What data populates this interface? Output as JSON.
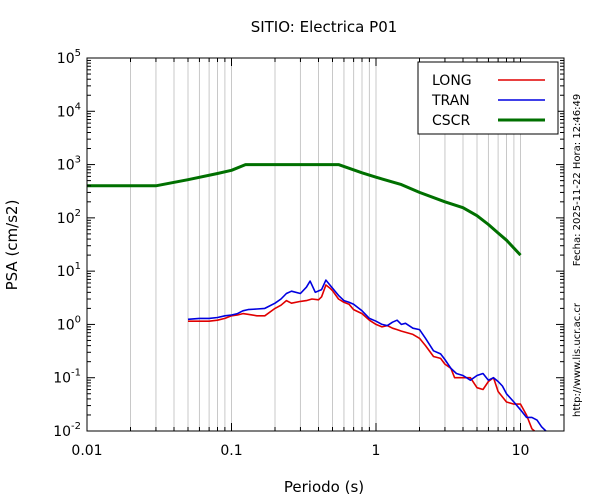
{
  "title": "SITIO: Electrica P01",
  "side_texts": {
    "date": "Fecha: 2025-11-22 Hora: 12:46:49",
    "url": "http://www.lis.ucr.ac.cr"
  },
  "chart_data": {
    "type": "line",
    "title": "SITIO: Electrica P01",
    "xlabel": "Periodo (s)",
    "ylabel": "PSA (cm/s2)",
    "xscale": "log",
    "yscale": "log",
    "xlim": [
      0.01,
      20
    ],
    "ylim": [
      0.01,
      100000
    ],
    "xticks": [
      {
        "value": 0.01,
        "label": "0.01"
      },
      {
        "value": 0.1,
        "label": "0.1"
      },
      {
        "value": 1,
        "label": "1"
      },
      {
        "value": 10,
        "label": "10"
      }
    ],
    "yticks": [
      {
        "value": 0.01,
        "base": "10",
        "exp": "-2"
      },
      {
        "value": 0.1,
        "base": "10",
        "exp": "-1"
      },
      {
        "value": 1,
        "base": "10",
        "exp": "0"
      },
      {
        "value": 10,
        "base": "10",
        "exp": "1"
      },
      {
        "value": 100,
        "base": "10",
        "exp": "2"
      },
      {
        "value": 1000,
        "base": "10",
        "exp": "3"
      },
      {
        "value": 10000,
        "base": "10",
        "exp": "4"
      },
      {
        "value": 100000,
        "base": "10",
        "exp": "5"
      }
    ],
    "grid": "x-minor-vertical",
    "legend_position": "top-right",
    "series": [
      {
        "name": "LONG",
        "color": "#e00000",
        "points": [
          [
            0.05,
            1.15
          ],
          [
            0.06,
            1.15
          ],
          [
            0.07,
            1.15
          ],
          [
            0.08,
            1.2
          ],
          [
            0.09,
            1.3
          ],
          [
            0.1,
            1.45
          ],
          [
            0.11,
            1.5
          ],
          [
            0.12,
            1.6
          ],
          [
            0.13,
            1.55
          ],
          [
            0.15,
            1.45
          ],
          [
            0.17,
            1.45
          ],
          [
            0.2,
            2.0
          ],
          [
            0.22,
            2.3
          ],
          [
            0.24,
            2.8
          ],
          [
            0.26,
            2.5
          ],
          [
            0.3,
            2.7
          ],
          [
            0.33,
            2.8
          ],
          [
            0.36,
            3.0
          ],
          [
            0.4,
            2.9
          ],
          [
            0.42,
            3.3
          ],
          [
            0.45,
            5.5
          ],
          [
            0.48,
            4.8
          ],
          [
            0.5,
            4.3
          ],
          [
            0.55,
            3.0
          ],
          [
            0.6,
            2.6
          ],
          [
            0.65,
            2.4
          ],
          [
            0.7,
            1.9
          ],
          [
            0.8,
            1.6
          ],
          [
            0.9,
            1.2
          ],
          [
            1.0,
            1.0
          ],
          [
            1.1,
            0.9
          ],
          [
            1.2,
            0.95
          ],
          [
            1.3,
            0.85
          ],
          [
            1.4,
            0.8
          ],
          [
            1.5,
            0.75
          ],
          [
            1.8,
            0.65
          ],
          [
            2.0,
            0.55
          ],
          [
            2.2,
            0.4
          ],
          [
            2.5,
            0.25
          ],
          [
            2.8,
            0.23
          ],
          [
            3.0,
            0.18
          ],
          [
            3.3,
            0.15
          ],
          [
            3.5,
            0.1
          ],
          [
            4.0,
            0.1
          ],
          [
            4.5,
            0.1
          ],
          [
            5.0,
            0.065
          ],
          [
            5.5,
            0.06
          ],
          [
            6.0,
            0.085
          ],
          [
            6.5,
            0.1
          ],
          [
            7.0,
            0.055
          ],
          [
            8.0,
            0.035
          ],
          [
            9.0,
            0.032
          ],
          [
            10.0,
            0.032
          ],
          [
            11.0,
            0.02
          ],
          [
            12.0,
            0.011
          ],
          [
            12.5,
            0.01
          ]
        ]
      },
      {
        "name": "TRAN",
        "color": "#0000e0",
        "points": [
          [
            0.05,
            1.25
          ],
          [
            0.06,
            1.3
          ],
          [
            0.07,
            1.3
          ],
          [
            0.08,
            1.35
          ],
          [
            0.09,
            1.45
          ],
          [
            0.1,
            1.5
          ],
          [
            0.11,
            1.6
          ],
          [
            0.12,
            1.8
          ],
          [
            0.13,
            1.9
          ],
          [
            0.15,
            1.95
          ],
          [
            0.17,
            2.0
          ],
          [
            0.2,
            2.5
          ],
          [
            0.22,
            3.0
          ],
          [
            0.24,
            3.8
          ],
          [
            0.26,
            4.2
          ],
          [
            0.3,
            3.8
          ],
          [
            0.33,
            5.0
          ],
          [
            0.35,
            6.5
          ],
          [
            0.38,
            4.0
          ],
          [
            0.42,
            4.5
          ],
          [
            0.45,
            6.8
          ],
          [
            0.48,
            5.5
          ],
          [
            0.5,
            4.8
          ],
          [
            0.55,
            3.5
          ],
          [
            0.6,
            2.8
          ],
          [
            0.65,
            2.6
          ],
          [
            0.7,
            2.4
          ],
          [
            0.8,
            1.8
          ],
          [
            0.9,
            1.3
          ],
          [
            1.0,
            1.15
          ],
          [
            1.1,
            1.0
          ],
          [
            1.2,
            0.95
          ],
          [
            1.3,
            1.1
          ],
          [
            1.4,
            1.2
          ],
          [
            1.5,
            1.0
          ],
          [
            1.6,
            1.05
          ],
          [
            1.8,
            0.85
          ],
          [
            2.0,
            0.8
          ],
          [
            2.2,
            0.55
          ],
          [
            2.5,
            0.32
          ],
          [
            2.8,
            0.28
          ],
          [
            3.0,
            0.22
          ],
          [
            3.3,
            0.15
          ],
          [
            3.6,
            0.12
          ],
          [
            4.0,
            0.11
          ],
          [
            4.5,
            0.09
          ],
          [
            5.0,
            0.11
          ],
          [
            5.5,
            0.12
          ],
          [
            6.0,
            0.09
          ],
          [
            6.5,
            0.1
          ],
          [
            7.0,
            0.085
          ],
          [
            7.5,
            0.07
          ],
          [
            8.0,
            0.05
          ],
          [
            9.0,
            0.035
          ],
          [
            10.0,
            0.025
          ],
          [
            11.0,
            0.018
          ],
          [
            12.0,
            0.018
          ],
          [
            13.0,
            0.016
          ],
          [
            14.0,
            0.012
          ],
          [
            15.0,
            0.01
          ]
        ]
      },
      {
        "name": "CSCR",
        "color": "#007000",
        "points": [
          [
            0.01,
            400
          ],
          [
            0.03,
            400
          ],
          [
            0.05,
            520
          ],
          [
            0.08,
            680
          ],
          [
            0.1,
            780
          ],
          [
            0.125,
            1000
          ],
          [
            0.55,
            1000
          ],
          [
            0.8,
            700
          ],
          [
            1.0,
            580
          ],
          [
            1.5,
            420
          ],
          [
            2.0,
            300
          ],
          [
            3.0,
            200
          ],
          [
            4.0,
            155
          ],
          [
            5.0,
            110
          ],
          [
            6.0,
            75
          ],
          [
            7.0,
            52
          ],
          [
            8.0,
            38
          ],
          [
            10.0,
            20
          ]
        ]
      }
    ]
  }
}
